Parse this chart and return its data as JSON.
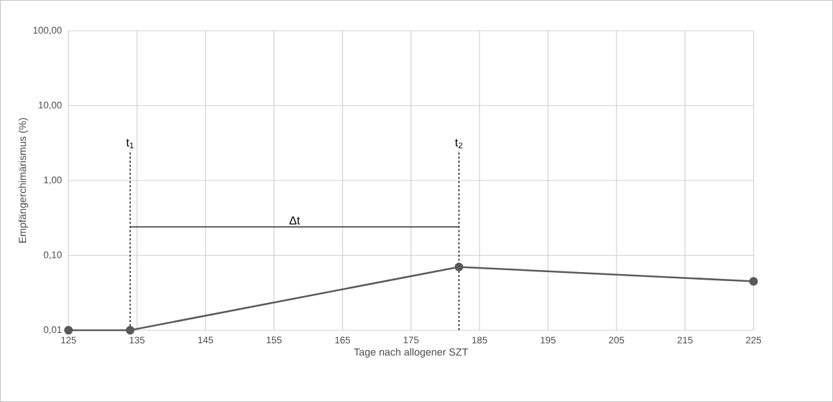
{
  "chart_data": {
    "type": "line",
    "xlabel": "Tage nach allogener SZT",
    "ylabel": "Empfängerchimärismus (%)",
    "x": [
      125,
      134,
      182,
      225
    ],
    "series": [
      {
        "color": "#595959",
        "values": [
          0.01,
          0.01,
          0.07,
          0.045
        ]
      },
      {
        "type": "line",
        "name": "Δt",
        "color": "#000000",
        "marker": "none",
        "x": [
          134,
          182
        ],
        "values": [
          0.24,
          0.24
        ]
      }
    ],
    "log": "y",
    "xlim": [
      125,
      225
    ],
    "ylim": [
      0.01,
      100
    ],
    "xticks": [
      125,
      135,
      145,
      155,
      165,
      175,
      185,
      195,
      205,
      215,
      225
    ],
    "yticks": [
      {
        "value": 0.01,
        "label": "0,01"
      },
      {
        "value": 0.1,
        "label": "0,10"
      },
      {
        "value": 1,
        "label": "1,00"
      },
      {
        "value": 10,
        "label": "10,00"
      },
      {
        "value": 100,
        "label": "100,00"
      }
    ],
    "grid": true,
    "legend": false,
    "marker": "circle",
    "line_style": "solid",
    "ref_lines": [
      {
        "axis": "x",
        "value": 134,
        "label": "t$_{1}$",
        "line_style": "dashed"
      },
      {
        "axis": "x",
        "value": 182,
        "label": "t$_{2}$",
        "line_style": "dashed"
      }
    ]
  }
}
